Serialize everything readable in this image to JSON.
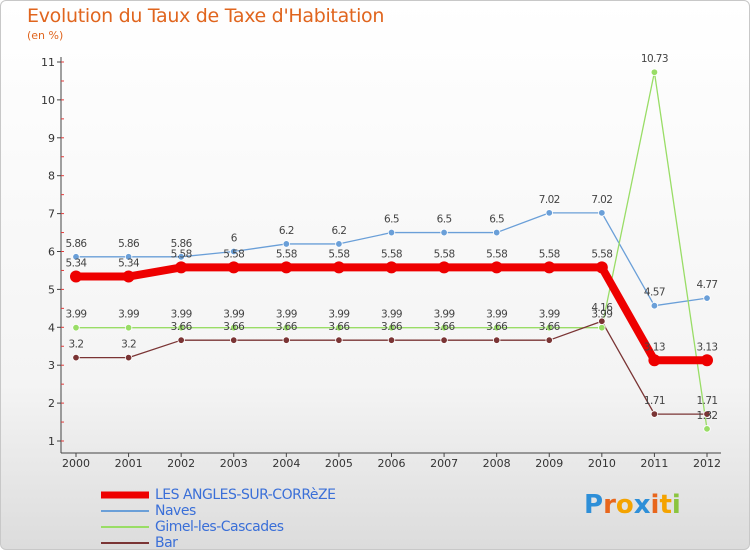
{
  "header": {
    "title": "Evolution du Taux de Taxe d'Habitation",
    "subtitle": "(en %)"
  },
  "brand": {
    "letters": [
      "P",
      "r",
      "o",
      "x",
      "i",
      "t",
      "i"
    ],
    "colors": [
      "#2e8fd8",
      "#e8661c",
      "#f4a300",
      "#2e8fd8",
      "#e8661c",
      "#f4a300",
      "#8bc53f"
    ]
  },
  "chart_data": {
    "type": "line",
    "title": "Evolution du Taux de Taxe d'Habitation",
    "ylabel": "(en %)",
    "xlabel": "",
    "categories": [
      "2000",
      "2001",
      "2002",
      "2003",
      "2004",
      "2005",
      "2006",
      "2007",
      "2008",
      "2009",
      "2010",
      "2011",
      "2012"
    ],
    "ylim": [
      1,
      11
    ],
    "yticks": [
      1,
      2,
      3,
      4,
      5,
      6,
      7,
      8,
      9,
      10,
      11
    ],
    "series": [
      {
        "name": "LES ANGLES-SUR-CORRèZE",
        "color": "#ee0000",
        "values": [
          5.34,
          5.34,
          5.58,
          5.58,
          5.58,
          5.58,
          5.58,
          5.58,
          5.58,
          5.58,
          5.58,
          3.13,
          3.13
        ],
        "labels": [
          "5.34",
          "5.34",
          "5.58",
          "5.58",
          "5.58",
          "5.58",
          "5.58",
          "5.58",
          "5.58",
          "5.58",
          "5.58",
          "3.13",
          "3.13"
        ]
      },
      {
        "name": "Naves",
        "color": "#6a9fd8",
        "values": [
          5.86,
          5.86,
          5.86,
          6.0,
          6.2,
          6.2,
          6.5,
          6.5,
          6.5,
          7.02,
          7.02,
          4.57,
          4.77
        ],
        "labels": [
          "5.86",
          "5.86",
          "5.86",
          "6",
          "6.2",
          "6.2",
          "6.5",
          "6.5",
          "6.5",
          "7.02",
          "7.02",
          "4.57",
          "4.77"
        ]
      },
      {
        "name": "Gimel-les-Cascades",
        "color": "#99dd66",
        "values": [
          3.99,
          3.99,
          3.99,
          3.99,
          3.99,
          3.99,
          3.99,
          3.99,
          3.99,
          3.99,
          3.99,
          10.73,
          1.32
        ],
        "labels": [
          "3.99",
          "3.99",
          "3.99",
          "3.99",
          "3.99",
          "3.99",
          "3.99",
          "3.99",
          "3.99",
          "3.99",
          "3.99",
          "10.73",
          "1.32"
        ]
      },
      {
        "name": "Bar",
        "color": "#7a3434",
        "values": [
          3.2,
          3.2,
          3.66,
          3.66,
          3.66,
          3.66,
          3.66,
          3.66,
          3.66,
          3.66,
          4.16,
          1.71,
          1.71
        ],
        "labels": [
          "3.2",
          "3.2",
          "3.66",
          "3.66",
          "3.66",
          "3.66",
          "3.66",
          "3.66",
          "3.66",
          "3.66",
          "4.16",
          "1.71",
          "1.71"
        ]
      }
    ],
    "grid": false,
    "legend": "bottom-left"
  }
}
